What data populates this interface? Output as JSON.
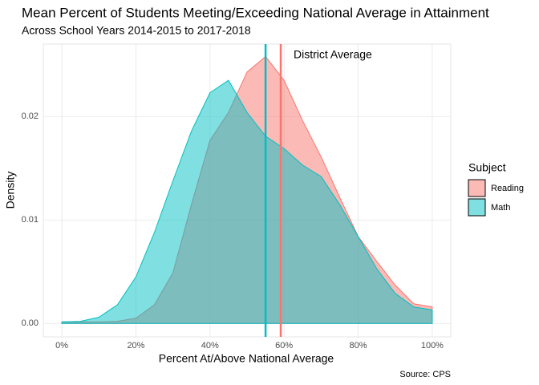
{
  "chart_data": {
    "type": "density",
    "title": "Mean Percent of Students Meeting/Exceeding National Average in Attainment",
    "subtitle": "Across School Years 2014-2015 to 2017-2018",
    "x_label": "Percent At/Above National Average",
    "y_label": "Density",
    "caption": "Source: CPS",
    "annotation": "District Average",
    "legend_title": "Subject",
    "legend_position": "right",
    "grid": true,
    "x": [
      0,
      5,
      10,
      15,
      20,
      25,
      30,
      35,
      40,
      45,
      50,
      55,
      60,
      65,
      70,
      75,
      80,
      85,
      90,
      95,
      100
    ],
    "series": [
      {
        "name": "Reading",
        "color": "#F8766D",
        "mean": 59.1,
        "values": [
          0.00015,
          0.00015,
          0.00015,
          0.0002,
          0.0005,
          0.0018,
          0.0049,
          0.0115,
          0.0177,
          0.0204,
          0.0243,
          0.0258,
          0.0235,
          0.0196,
          0.0161,
          0.0122,
          0.0084,
          0.006,
          0.0037,
          0.0019,
          0.0016
        ]
      },
      {
        "name": "Math",
        "color": "#00BFC4",
        "mean": 55.0,
        "values": [
          0.00015,
          0.0002,
          0.0006,
          0.0018,
          0.0045,
          0.0088,
          0.0138,
          0.0186,
          0.0223,
          0.0235,
          0.0204,
          0.0181,
          0.0169,
          0.0153,
          0.0142,
          0.0115,
          0.0084,
          0.0053,
          0.0029,
          0.0016,
          0.0013
        ]
      }
    ],
    "xlim": [
      -5,
      105
    ],
    "xticks": [
      {
        "value": 0,
        "label": "0%"
      },
      {
        "value": 20,
        "label": "20%"
      },
      {
        "value": 40,
        "label": "40%"
      },
      {
        "value": 60,
        "label": "60%"
      },
      {
        "value": 80,
        "label": "80%"
      },
      {
        "value": 100,
        "label": "100%"
      }
    ],
    "ylim": [
      -0.0013,
      0.027
    ],
    "yticks": [
      {
        "value": 0,
        "label": "0.00"
      },
      {
        "value": 0.01,
        "label": "0.01"
      },
      {
        "value": 0.02,
        "label": "0.02"
      }
    ]
  }
}
